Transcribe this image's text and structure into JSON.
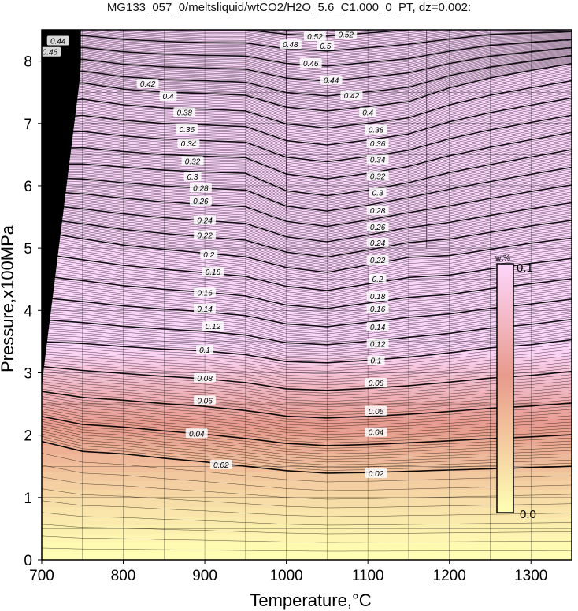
{
  "title": "MG133_057_0/meltsliquid/wtCO2/H2O_5.6_C1.000_0_PT, dz=0.002:",
  "chart_data": {
    "type": "heatmap",
    "xlabel": "Temperature,°C",
    "ylabel": "Pressure,x100MPa",
    "xlim": [
      700,
      1350
    ],
    "ylim": [
      0,
      8.5
    ],
    "x_ticks": [
      700,
      800,
      900,
      1000,
      1100,
      1200,
      1300
    ],
    "y_ticks": [
      0,
      1,
      2,
      3,
      4,
      5,
      6,
      7,
      8
    ],
    "grid": true,
    "contour_interval": 0.002,
    "bold_contour_interval": 0.02,
    "contour_labels": [
      "0.02",
      "0.04",
      "0.06",
      "0.08",
      "0.1",
      "0.12",
      "0.14",
      "0.16",
      "0.18",
      "0.2",
      "0.22",
      "0.24",
      "0.26",
      "0.28",
      "0.3",
      "0.32",
      "0.34",
      "0.36",
      "0.38",
      "0.4",
      "0.42",
      "0.44",
      "0.46",
      "0.48",
      "0.5",
      "0.52"
    ],
    "contour_label_x": [
      [
        920,
        1110
      ],
      [
        890,
        1110
      ],
      [
        900,
        1110
      ],
      [
        900,
        1110
      ],
      [
        900,
        1110
      ],
      [
        910,
        1112
      ],
      [
        900,
        1112
      ],
      [
        900,
        1112
      ],
      [
        910,
        1112
      ],
      [
        905,
        1112
      ],
      [
        900,
        1112
      ],
      [
        900,
        1112
      ],
      [
        895,
        1112
      ],
      [
        895,
        1112
      ],
      [
        885,
        1112
      ],
      [
        885,
        1112
      ],
      [
        880,
        1112
      ],
      [
        878,
        1112
      ],
      [
        875,
        1110
      ],
      [
        855,
        1100
      ],
      [
        830,
        1080
      ],
      [
        720,
        1055
      ],
      [
        710,
        1030
      ],
      [
        1005
      ],
      [
        940,
        1048
      ],
      [
        1035,
        1073
      ]
    ],
    "contour_label_y": [
      [
        1.53,
        1.39
      ],
      [
        2.03,
        2.05
      ],
      [
        2.56,
        2.39
      ],
      [
        2.92,
        2.84
      ],
      [
        3.37,
        3.2
      ],
      [
        3.75,
        3.47
      ],
      [
        4.03,
        3.74
      ],
      [
        4.29,
        4.03
      ],
      [
        4.62,
        4.23
      ],
      [
        4.9,
        4.51
      ],
      [
        5.21,
        4.81
      ],
      [
        5.45,
        5.09
      ],
      [
        5.76,
        5.34
      ],
      [
        5.97,
        5.61
      ],
      [
        6.15,
        5.89
      ],
      [
        6.4,
        6.16
      ],
      [
        6.68,
        6.42
      ],
      [
        6.91,
        6.68
      ],
      [
        7.18,
        6.9
      ],
      [
        7.44,
        7.18
      ],
      [
        7.64,
        7.45
      ],
      [
        8.33,
        7.7
      ],
      [
        8.15,
        7.97
      ],
      [
        8.27
      ],
      [
        8.45,
        8.25
      ],
      [
        8.4,
        8.43
      ]
    ],
    "trend_knots_T": [
      700,
      750,
      800,
      850,
      900,
      950,
      1000,
      1050,
      1100,
      1150,
      1200,
      1250,
      1300,
      1350
    ],
    "trend_P_at_0.02": [
      1.9,
      1.74,
      1.7,
      1.63,
      1.57,
      1.5,
      1.43,
      1.39,
      1.4,
      1.42,
      1.44,
      1.46,
      1.48,
      1.5
    ],
    "trend_P_at_0.1": [
      3.5,
      3.47,
      3.42,
      3.38,
      3.35,
      3.29,
      3.18,
      3.16,
      3.2,
      3.25,
      3.32,
      3.4,
      3.45,
      3.53
    ],
    "trend_P_at_0.2": [
      5.26,
      5.15,
      5.05,
      4.98,
      4.92,
      4.86,
      4.69,
      4.61,
      4.73,
      4.85,
      4.88,
      4.98,
      5.08,
      5.16
    ],
    "trend_P_at_0.3": [
      6.35,
      6.35,
      6.3,
      6.25,
      6.22,
      6.2,
      5.92,
      5.84,
      5.93,
      6.05,
      6.21,
      6.34,
      6.46,
      6.58
    ],
    "trend_P_at_0.4": [
      7.57,
      7.65,
      7.55,
      7.5,
      7.48,
      7.45,
      7.26,
      7.2,
      7.27,
      7.35,
      7.57,
      7.73,
      7.85,
      7.96
    ],
    "trend_P_at_0.5": [
      8.6,
      8.6,
      8.55,
      8.52,
      8.5,
      8.5,
      8.43,
      8.4,
      8.45,
      8.5,
      8.55,
      8.6,
      8.6,
      8.6
    ],
    "colorbar": {
      "label": "wt%",
      "min_label": "0.0",
      "max_label": "0.1",
      "min": 0.0,
      "max": 0.1
    },
    "colors": {
      "low": "#ffffb4",
      "mid": "#e89a8c",
      "high": "#fdd6fc",
      "frame": "#000000"
    }
  }
}
